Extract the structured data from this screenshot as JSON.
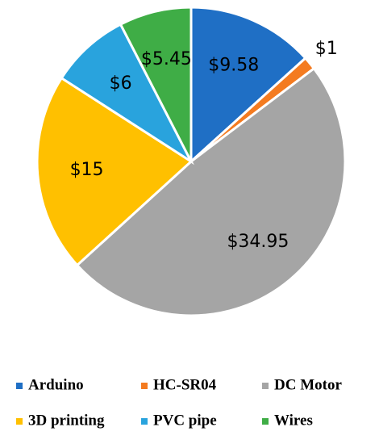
{
  "chart_data": {
    "type": "pie",
    "categories": [
      "Arduino",
      "HC-SR04",
      "DC Motor",
      "3D printing",
      "PVC pipe",
      "Wires"
    ],
    "values": [
      9.58,
      1,
      34.95,
      15,
      6,
      5.45
    ],
    "value_labels": [
      "$9.58",
      "$1",
      "$34.95",
      "$15",
      "$6",
      "$5.45"
    ],
    "colors": [
      "#1f6fc5",
      "#f47b20",
      "#a5a5a5",
      "#ffc000",
      "#29a3dd",
      "#3fad46"
    ]
  }
}
